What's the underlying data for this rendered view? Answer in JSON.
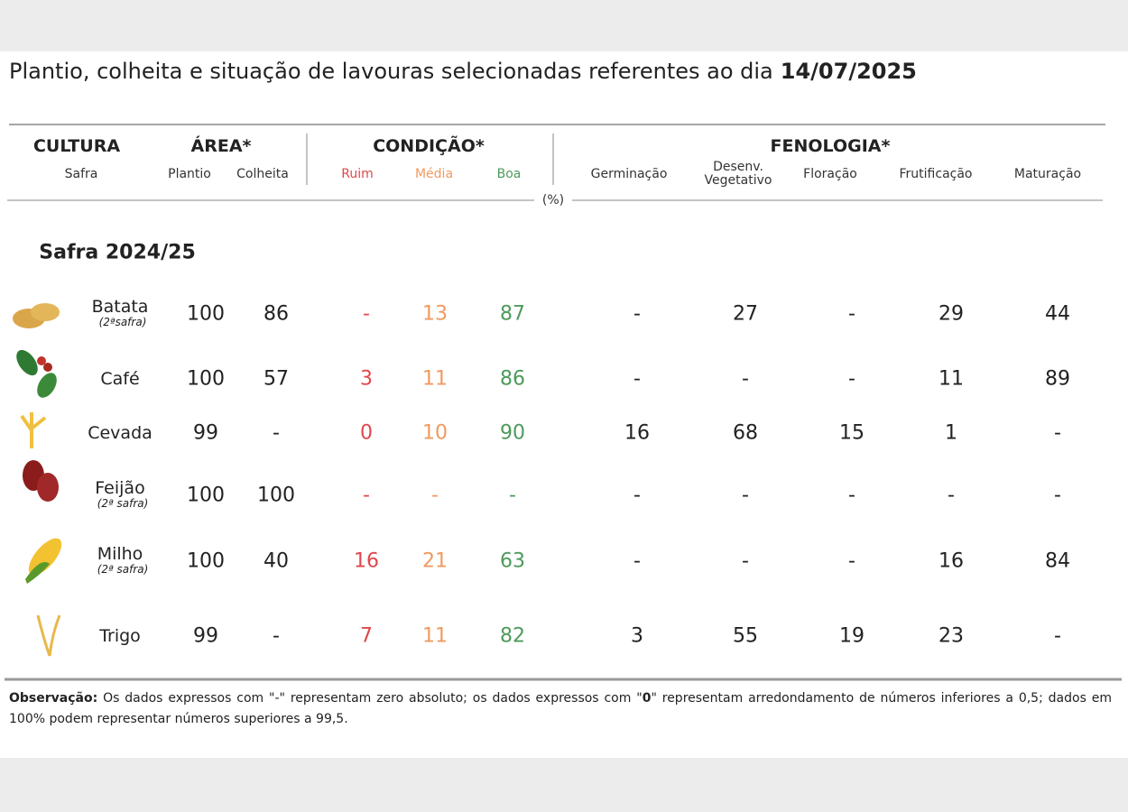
{
  "title": {
    "text": "Plantio, colheita e situação de lavouras selecionadas referentes ao dia",
    "date": "14/07/2025"
  },
  "header": {
    "cultura": {
      "label": "CULTURA",
      "sub": "Safra"
    },
    "area": {
      "label": "ÁREA*",
      "cols": [
        "Plantio",
        "Colheita"
      ]
    },
    "condicao": {
      "label": "CONDIÇÃO*",
      "cols": [
        "Ruim",
        "Média",
        "Boa"
      ]
    },
    "fenologia": {
      "label": "FENOLOGIA*",
      "cols": [
        "Germinação",
        "Desenv. Vegetativo",
        "Floração",
        "Frutificação",
        "Maturação"
      ]
    },
    "unit": "(%)"
  },
  "section": "Safra 2024/25",
  "rows": [
    {
      "name": "Batata",
      "note": "(2ªsafra)",
      "values": [
        100,
        86,
        "-",
        13,
        87,
        "-",
        27,
        "-",
        29,
        44
      ]
    },
    {
      "name": "Café",
      "values": [
        100,
        57,
        3,
        11,
        86,
        "-",
        "-",
        "-",
        11,
        89
      ]
    },
    {
      "name": "Cevada",
      "values": [
        99,
        "-",
        0,
        10,
        90,
        16,
        68,
        15,
        1,
        "-"
      ]
    },
    {
      "name": "Feijão",
      "note": "(2ª safra)",
      "values": [
        100,
        100,
        "-",
        "-",
        "-",
        "-",
        "-",
        "-",
        "-",
        "-"
      ]
    },
    {
      "name": "Milho",
      "note": "(2ª safra)",
      "values": [
        100,
        40,
        16,
        21,
        63,
        "-",
        "-",
        "-",
        16,
        84
      ]
    },
    {
      "name": "Trigo",
      "values": [
        99,
        "-",
        7,
        11,
        82,
        3,
        55,
        19,
        23,
        "-"
      ]
    }
  ],
  "observation": {
    "label": "Observação:",
    "parts": [
      "Os dados expressos com \"-\" representam zero absoluto; os dados expressos com \"",
      "0",
      "\" representam arredondamento de números inferiores a 0,5; dados em 100% podem representar números superiores a 99,5."
    ]
  }
}
